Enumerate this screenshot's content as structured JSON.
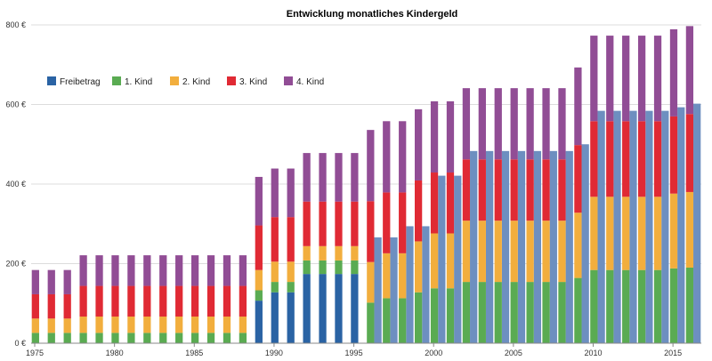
{
  "chart_data": {
    "type": "bar",
    "title": "Entwicklung monatliches Kindergeld",
    "xlabel": "",
    "ylabel": "",
    "ylim": [
      0,
      800
    ],
    "y_ticks": [
      0,
      200,
      400,
      600,
      800
    ],
    "y_tick_suffix": " €",
    "x_tick_labels": [
      "1975",
      "1980",
      "1985",
      "1990",
      "1995",
      "2000",
      "2005",
      "2010",
      "2015"
    ],
    "grid": true,
    "legend_position": "top-left",
    "categories": [
      1975,
      1976,
      1977,
      1978,
      1979,
      1980,
      1981,
      1982,
      1983,
      1984,
      1985,
      1986,
      1987,
      1988,
      1989,
      1990,
      1991,
      1992,
      1993,
      1994,
      1995,
      1996,
      1997,
      1998,
      1999,
      2000,
      2001,
      2002,
      2003,
      2004,
      2005,
      2006,
      2007,
      2008,
      2009,
      2010,
      2011,
      2012,
      2013,
      2014,
      2015,
      2016
    ],
    "series": [
      {
        "name": "1. Kind",
        "color": "#5aab52",
        "values": [
          26,
          26,
          26,
          26,
          26,
          26,
          26,
          26,
          26,
          26,
          26,
          26,
          26,
          26,
          26,
          26,
          26,
          34,
          34,
          34,
          34,
          102,
          113,
          113,
          128,
          138,
          138,
          154,
          154,
          154,
          154,
          154,
          154,
          154,
          164,
          184,
          184,
          184,
          184,
          184,
          188,
          190
        ]
      },
      {
        "name": "2. Kind",
        "color": "#f2ae3d",
        "values": [
          36,
          36,
          36,
          41,
          41,
          41,
          41,
          41,
          41,
          41,
          41,
          41,
          41,
          41,
          51,
          51,
          51,
          36,
          36,
          36,
          36,
          102,
          113,
          113,
          128,
          138,
          138,
          154,
          154,
          154,
          154,
          154,
          154,
          154,
          164,
          184,
          184,
          184,
          184,
          184,
          188,
          190
        ]
      },
      {
        "name": "3. Kind",
        "color": "#e02a34",
        "values": [
          61,
          61,
          61,
          77,
          77,
          77,
          77,
          77,
          77,
          77,
          77,
          77,
          77,
          77,
          112,
          112,
          112,
          112,
          112,
          112,
          112,
          153,
          153,
          153,
          153,
          153,
          153,
          154,
          154,
          154,
          154,
          154,
          154,
          154,
          170,
          190,
          190,
          190,
          190,
          190,
          194,
          196
        ]
      },
      {
        "name": "4. Kind",
        "color": "#914d95",
        "values": [
          61,
          61,
          61,
          77,
          77,
          77,
          77,
          77,
          77,
          77,
          77,
          77,
          77,
          77,
          122,
          122,
          122,
          122,
          122,
          122,
          122,
          179,
          179,
          179,
          179,
          179,
          179,
          179,
          179,
          179,
          179,
          179,
          179,
          179,
          195,
          215,
          215,
          215,
          215,
          215,
          219,
          221
        ]
      },
      {
        "name": "Freibetrag",
        "color": "#2a63a4",
        "values": [
          null,
          null,
          null,
          null,
          null,
          null,
          null,
          null,
          null,
          null,
          null,
          null,
          null,
          null,
          107,
          128,
          128,
          174,
          174,
          174,
          174,
          266,
          266,
          294,
          294,
          421,
          421,
          483,
          483,
          483,
          483,
          483,
          483,
          483,
          500,
          584,
          584,
          584,
          584,
          584,
          593,
          602
        ]
      }
    ],
    "legend_order": [
      "Freibetrag",
      "1. Kind",
      "2. Kind",
      "3. Kind",
      "4. Kind"
    ]
  }
}
